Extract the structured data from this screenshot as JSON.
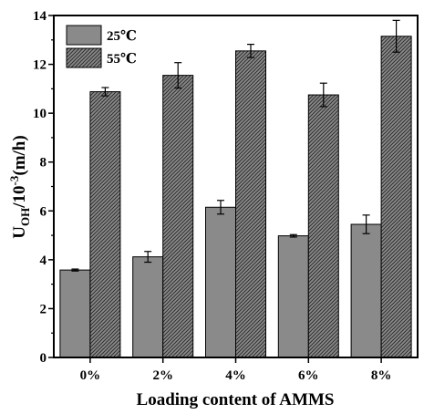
{
  "chart_data": {
    "type": "bar",
    "title": "",
    "xlabel": "Loading content of AMMS",
    "ylabel": {
      "main": "U",
      "sub": "OH",
      "mid": "/10",
      "sup": "-3",
      "tail": "(m/h)"
    },
    "categories": [
      "0%",
      "2%",
      "4%",
      "6%",
      "8%"
    ],
    "ylim": [
      0,
      14
    ],
    "yticks": [
      "0",
      "2",
      "4",
      "6",
      "8",
      "10",
      "12",
      "14"
    ],
    "series": [
      {
        "name": "25℃",
        "values": [
          3.58,
          4.12,
          6.15,
          4.98,
          5.45
        ],
        "errors": [
          0.04,
          0.22,
          0.28,
          0.05,
          0.38
        ],
        "fill": "#8a8a8a",
        "pattern": "solid"
      },
      {
        "name": "55℃",
        "values": [
          10.88,
          11.55,
          12.55,
          10.75,
          13.15
        ],
        "errors": [
          0.17,
          0.52,
          0.27,
          0.48,
          0.65
        ],
        "fill": "#8a8a8a",
        "pattern": "hatch"
      }
    ],
    "legend_position": "top-left",
    "grid": false
  }
}
